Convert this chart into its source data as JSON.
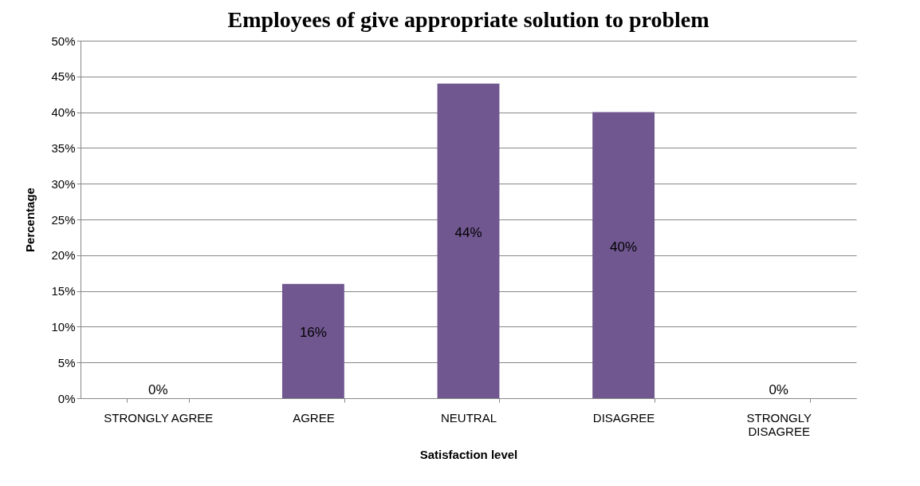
{
  "chart_data": {
    "type": "bar",
    "title": "Employees of give appropriate solution to problem",
    "xlabel": "Satisfaction level",
    "ylabel": "Percentage",
    "categories": [
      "STRONGLY AGREE",
      "AGREE",
      "NEUTRAL",
      "DISAGREE",
      "STRONGLY DISAGREE"
    ],
    "values": [
      0,
      16,
      44,
      40,
      0
    ],
    "color": "#70578f",
    "value_labels": [
      "0%",
      "16%",
      "44%",
      "40%",
      "0%"
    ],
    "ylim": [
      0,
      50
    ],
    "yticks": [
      {
        "value": 0,
        "label": "0%"
      },
      {
        "value": 5,
        "label": "5%"
      },
      {
        "value": 10,
        "label": "10%"
      },
      {
        "value": 15,
        "label": "15%"
      },
      {
        "value": 20,
        "label": "20%"
      },
      {
        "value": 25,
        "label": "25%"
      },
      {
        "value": 30,
        "label": "30%"
      },
      {
        "value": 35,
        "label": "35%"
      },
      {
        "value": 40,
        "label": "40%"
      },
      {
        "value": 45,
        "label": "45%"
      },
      {
        "value": 50,
        "label": "50%"
      }
    ],
    "grid": "y"
  }
}
